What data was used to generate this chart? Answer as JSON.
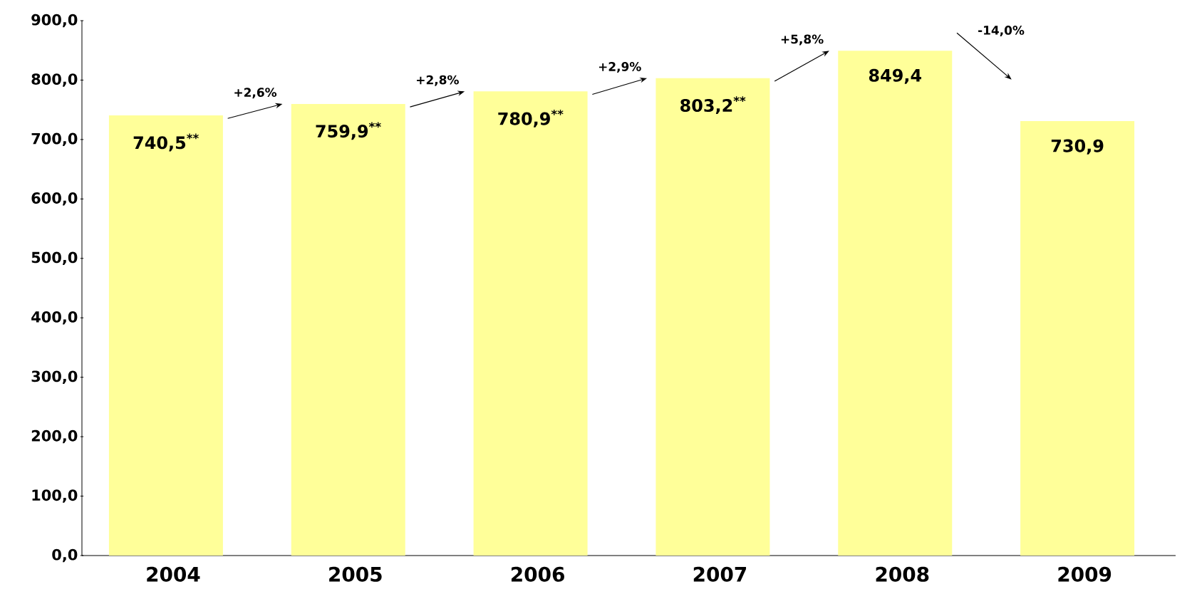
{
  "chart_data": {
    "type": "bar",
    "categories": [
      "2004",
      "2005",
      "2006",
      "2007",
      "2008",
      "2009"
    ],
    "values": [
      740.5,
      759.9,
      780.9,
      803.2,
      849.4,
      730.9
    ],
    "value_labels": [
      "740,5$^{**}$",
      "759,9$^{**}$",
      "780,9$^{**}$",
      "803,2$^{**}$",
      "849,4",
      "730,9"
    ],
    "color": "#ffff99",
    "ylim": [
      0,
      900
    ],
    "yticks": [
      {
        "value": 0,
        "label": "0,0"
      },
      {
        "value": 100,
        "label": "100,0"
      },
      {
        "value": 200,
        "label": "200,0"
      },
      {
        "value": 300,
        "label": "300,0"
      },
      {
        "value": 400,
        "label": "400,0"
      },
      {
        "value": 500,
        "label": "500,0"
      },
      {
        "value": 600,
        "label": "600,0"
      },
      {
        "value": 700,
        "label": "700,0"
      },
      {
        "value": 800,
        "label": "800,0"
      },
      {
        "value": 900,
        "label": "900,0"
      }
    ],
    "annotations": [
      "+2,6%",
      "+2,8%",
      "+2,9%",
      "+5,8%",
      "-14,0%"
    ]
  }
}
